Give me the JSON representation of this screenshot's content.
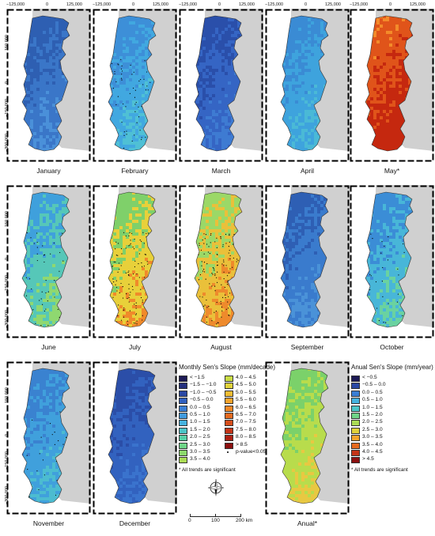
{
  "panels": [
    {
      "id": "jan",
      "label": "January",
      "colors": [
        "#2e5fb2",
        "#3a76c8",
        "#4a90d9"
      ],
      "dots": 0
    },
    {
      "id": "feb",
      "label": "February",
      "colors": [
        "#3d8fd8",
        "#41a8e0",
        "#4fc0d5"
      ],
      "dots": 70
    },
    {
      "id": "mar",
      "label": "March",
      "colors": [
        "#2a4faa",
        "#3565c4",
        "#3e7bd2"
      ],
      "dots": 0
    },
    {
      "id": "apr",
      "label": "April",
      "colors": [
        "#3a8bd4",
        "#3ea3dd",
        "#4ab9d6"
      ],
      "dots": 0
    },
    {
      "id": "may",
      "label": "May*",
      "colors": [
        "#c5280f",
        "#e0541a",
        "#f38b2a"
      ],
      "dots": 0
    },
    {
      "id": "jun",
      "label": "June",
      "colors": [
        "#3fa0dc",
        "#56c7b8",
        "#8fd870"
      ],
      "dots": 45
    },
    {
      "id": "jul",
      "label": "July",
      "colors": [
        "#7fd06a",
        "#e8d03a",
        "#f08a2a"
      ],
      "dots": 130
    },
    {
      "id": "aug",
      "label": "August",
      "colors": [
        "#9bd867",
        "#eac03a",
        "#ee8a2c"
      ],
      "dots": 140
    },
    {
      "id": "sep",
      "label": "September",
      "colors": [
        "#2e5fb4",
        "#3a7bcd",
        "#4a92d8"
      ],
      "dots": 0
    },
    {
      "id": "oct",
      "label": "October",
      "colors": [
        "#3b8dd6",
        "#48b6d8",
        "#6ad2a0"
      ],
      "dots": 30
    },
    {
      "id": "nov",
      "label": "November",
      "colors": [
        "#3a82d0",
        "#40a0dc",
        "#4cbcd0"
      ],
      "dots": 25
    },
    {
      "id": "dec",
      "label": "December",
      "colors": [
        "#2b4ea8",
        "#3262bf",
        "#3a73cd"
      ],
      "dots": 0
    },
    {
      "id": "anual",
      "label": "Anual*",
      "colors": [
        "#7bd16a",
        "#b8dc4c",
        "#e8c842"
      ],
      "dots": 0
    }
  ],
  "axes": {
    "top_ticks": [
      "−125,000",
      "0",
      "125,000"
    ],
    "left_ticks": [
      "150,000",
      "0",
      "−150,000",
      "−300,000"
    ]
  },
  "monthly_legend": {
    "title": "Monthly Sen's Slope (mm/decade)",
    "col1": [
      {
        "label": "< −1.5",
        "color": "#1d1a55"
      },
      {
        "label": "−1.5 – −1.0",
        "color": "#24307e"
      },
      {
        "label": "−1.0 – −0.5",
        "color": "#2a48a4"
      },
      {
        "label": "−0.5 – 0.0",
        "color": "#3060c0"
      },
      {
        "label": "0.0 – 0.5",
        "color": "#3a7ed4"
      },
      {
        "label": "0.5 – 1.0",
        "color": "#409ade"
      },
      {
        "label": "1.0 – 1.5",
        "color": "#46b3e0"
      },
      {
        "label": "1.5 – 2.0",
        "color": "#4cc6c8"
      },
      {
        "label": "2.0 – 2.5",
        "color": "#56d0a6"
      },
      {
        "label": "2.5 – 3.0",
        "color": "#6fd588"
      },
      {
        "label": "3.0 – 3.5",
        "color": "#8dd96c"
      },
      {
        "label": "3.5 – 4.0",
        "color": "#abdc55"
      }
    ],
    "col2": [
      {
        "label": "4.0 – 4.5",
        "color": "#c9dc44"
      },
      {
        "label": "4.5 – 5.0",
        "color": "#e1d23b"
      },
      {
        "label": "5.0 – 5.5",
        "color": "#efbd33"
      },
      {
        "label": "5.5 – 6.0",
        "color": "#f5a42c"
      },
      {
        "label": "6.0 – 6.5",
        "color": "#f08726"
      },
      {
        "label": "6.5 – 7.0",
        "color": "#e56a20"
      },
      {
        "label": "7.0 – 7.5",
        "color": "#d64e1b"
      },
      {
        "label": "7.5 – 8.0",
        "color": "#c43417"
      },
      {
        "label": "8.0 – 8.5",
        "color": "#ad2013"
      },
      {
        "label": "> 8.5",
        "color": "#8c1010"
      }
    ],
    "pvalue_label": "p-value<0.05",
    "note": "* All trends are significant"
  },
  "annual_legend": {
    "title": "Anual Sen's Slope (mm/year)",
    "items": [
      {
        "label": "< −0.5",
        "color": "#1d1a55"
      },
      {
        "label": "−0.5 – 0.0",
        "color": "#2a48a4"
      },
      {
        "label": "0.0 – 0.5",
        "color": "#3a7ed4"
      },
      {
        "label": "0.5 – 1.0",
        "color": "#46b3e0"
      },
      {
        "label": "1.0 – 1.5",
        "color": "#4cc6c8"
      },
      {
        "label": "1.5 – 2.0",
        "color": "#6fd588"
      },
      {
        "label": "2.0 – 2.5",
        "color": "#abdc55"
      },
      {
        "label": "2.5 – 3.0",
        "color": "#e1d23b"
      },
      {
        "label": "3.0 – 3.5",
        "color": "#f5a42c"
      },
      {
        "label": "3.5 – 4.0",
        "color": "#e56a20"
      },
      {
        "label": "4.0 – 4.5",
        "color": "#c43417"
      },
      {
        "label": "> 4.5",
        "color": "#8c1010"
      }
    ],
    "note": "* All trends are significant"
  },
  "scale_bar": {
    "labels": [
      "0",
      "100",
      "200 km"
    ]
  },
  "compass": {
    "icon": "compass-rose-icon"
  }
}
